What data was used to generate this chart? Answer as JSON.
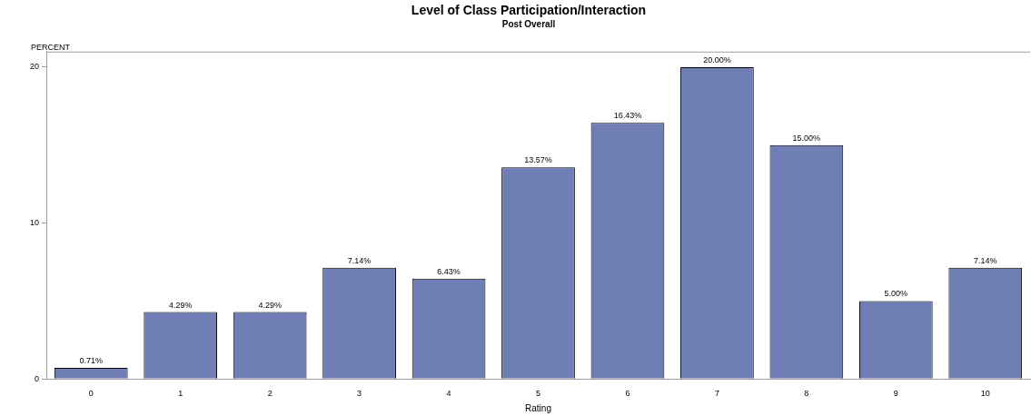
{
  "chart_data": {
    "type": "bar",
    "title": "Level of Class Participation/Interaction",
    "subtitle": "Post Overall",
    "xlabel": "Rating",
    "ylabel": "PERCENT",
    "categories": [
      "0",
      "1",
      "2",
      "3",
      "4",
      "5",
      "6",
      "7",
      "8",
      "9",
      "10"
    ],
    "values": [
      0.71,
      4.29,
      4.29,
      7.14,
      6.43,
      13.57,
      16.43,
      20.0,
      15.0,
      5.0,
      7.14
    ],
    "value_labels": [
      "0.71%",
      "4.29%",
      "4.29%",
      "7.14%",
      "6.43%",
      "13.57%",
      "16.43%",
      "20.00%",
      "15.00%",
      "5.00%",
      "7.14%"
    ],
    "color": "#6f7fb5",
    "ylim": [
      0,
      21
    ],
    "yticks": [
      0,
      10,
      20
    ],
    "grid": false,
    "legend": false
  }
}
